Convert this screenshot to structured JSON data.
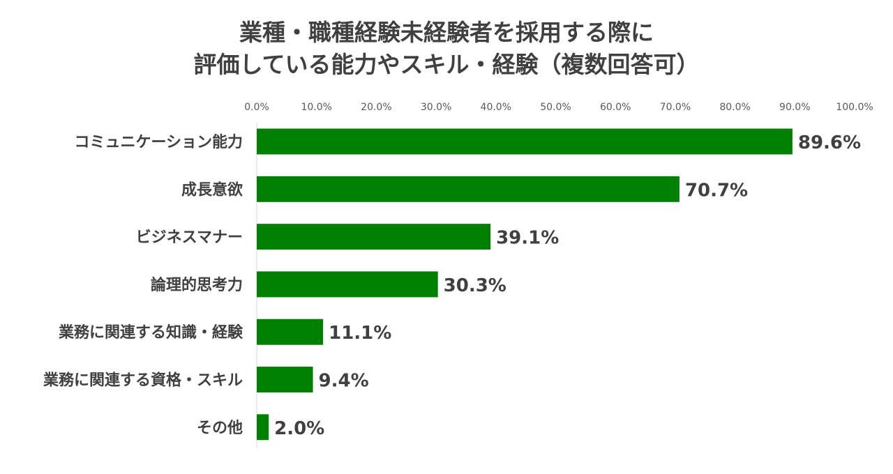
{
  "chart_data": {
    "type": "bar",
    "orientation": "horizontal",
    "title_lines": [
      "業種・職種経験未経験者を採用する際に",
      "評価している能力やスキル・経験（複数回答可）"
    ],
    "categories": [
      "コミュニケーション能力",
      "成長意欲",
      "ビジネスマナー",
      "論理的思考力",
      "業務に関連する知識・経験",
      "業務に関連する資格・スキル",
      "その他"
    ],
    "values": [
      89.6,
      70.7,
      39.1,
      30.3,
      11.1,
      9.4,
      2.0
    ],
    "data_labels": [
      "89.6%",
      "70.7%",
      "39.1%",
      "30.3%",
      "11.1%",
      "9.4%",
      "2.0%"
    ],
    "xlim": [
      0,
      100
    ],
    "xticks": [
      0,
      10,
      20,
      30,
      40,
      50,
      60,
      70,
      80,
      90,
      100
    ],
    "xtick_labels": [
      "0.0%",
      "10.0%",
      "20.0%",
      "30.0%",
      "40.0%",
      "50.0%",
      "60.0%",
      "70.0%",
      "80.0%",
      "90.0%",
      "100.0%"
    ],
    "axis_position": "top",
    "grid": false,
    "legend": "none",
    "bar_color": "#008000"
  }
}
